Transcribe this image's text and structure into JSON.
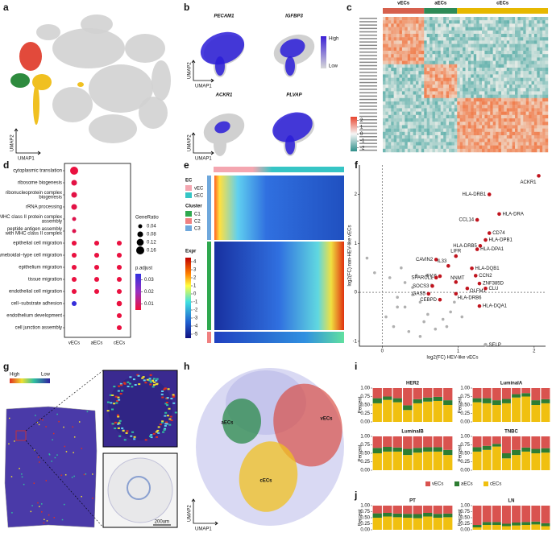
{
  "panel_labels": [
    "a",
    "b",
    "c",
    "d",
    "e",
    "f",
    "g",
    "h",
    "i",
    "j"
  ],
  "a": {
    "xlabel": "UMAP1",
    "ylabel": "UMAP2"
  },
  "b": {
    "genes": [
      "PECAM1",
      "IGFBP3",
      "ACKR1",
      "PLVAP"
    ],
    "scale": [
      "High",
      "Low"
    ],
    "xlabel": "UMAP1",
    "ylabel": "UMAP2"
  },
  "c": {
    "groups": [
      "vECs",
      "aECs",
      "cECs"
    ],
    "group_colors": [
      "#d6604d",
      "#2e8b57",
      "#e6b800"
    ],
    "colorbar_ticks": [
      2,
      1,
      0,
      -1,
      -2
    ],
    "colorbar_lim": [
      -2.5,
      2.5
    ]
  },
  "d": {
    "terms": [
      [
        "cytoplasmic translation"
      ],
      [
        "ribosome biogenesis"
      ],
      [
        "ribonucleoprotein complex",
        "biogenesis"
      ],
      [
        "rRNA processing"
      ],
      [
        "MHC class II protein complex",
        "assembly"
      ],
      [
        "peptide antigen assembly",
        "with MHC class II complex"
      ],
      [
        "epithelial cell migration"
      ],
      [
        "ameboidal−type cell migration"
      ],
      [
        "epithelium migration"
      ],
      [
        "tissue migration"
      ],
      [
        "endothelial cell migration"
      ],
      [
        "cell−substrate adhesion"
      ],
      [
        "endothelium development"
      ],
      [
        "cell junction assembly"
      ]
    ],
    "columns": [
      "vECs",
      "aECs",
      "cECs"
    ],
    "size_title": "GeneRatio",
    "size_ticks": [
      0.04,
      0.08,
      0.12,
      0.16
    ],
    "color_title": "p.adjust",
    "color_ticks": [
      0.03,
      0.02,
      0.01
    ],
    "color_lim": [
      0.005,
      0.035
    ],
    "ratio": [
      [
        0.16,
        null,
        null
      ],
      [
        0.08,
        null,
        null
      ],
      [
        0.08,
        null,
        null
      ],
      [
        0.08,
        null,
        null
      ],
      [
        0.04,
        null,
        null
      ],
      [
        0.04,
        null,
        null
      ],
      [
        0.06,
        0.06,
        0.06
      ],
      [
        0.06,
        0.06,
        0.06
      ],
      [
        0.06,
        0.06,
        0.06
      ],
      [
        0.06,
        0.06,
        0.06
      ],
      [
        0.06,
        0.06,
        0.06
      ],
      [
        0.06,
        null,
        0.07
      ],
      [
        null,
        null,
        0.06
      ],
      [
        null,
        null,
        0.06
      ]
    ],
    "padj": [
      [
        0.006,
        null,
        null
      ],
      [
        0.007,
        null,
        null
      ],
      [
        0.007,
        null,
        null
      ],
      [
        0.007,
        null,
        null
      ],
      [
        0.008,
        null,
        null
      ],
      [
        0.008,
        null,
        null
      ],
      [
        0.006,
        0.006,
        0.006
      ],
      [
        0.006,
        0.006,
        0.006
      ],
      [
        0.006,
        0.006,
        0.006
      ],
      [
        0.006,
        0.006,
        0.006
      ],
      [
        0.006,
        0.006,
        0.006
      ],
      [
        0.034,
        null,
        0.006
      ],
      [
        null,
        null,
        0.006
      ],
      [
        null,
        null,
        0.006
      ]
    ]
  },
  "e": {
    "ec_title": "EC",
    "ec": [
      "vEC",
      "cEC"
    ],
    "ec_colors": [
      "#f4a6b0",
      "#36c5c5"
    ],
    "cluster_title": "Cluster",
    "clusters": [
      "C1",
      "C2",
      "C3"
    ],
    "cluster_colors": [
      "#2fa84f",
      "#f08080",
      "#6fa8dc"
    ],
    "expr_title": "Expr",
    "expr_ticks": [
      4,
      3,
      2,
      1,
      0,
      -1,
      -2,
      -3,
      -4,
      -5
    ],
    "expr_lim": [
      -5.5,
      4.5
    ]
  },
  "f": {
    "xlabel": "log2(FC) HEV-like vECs",
    "ylabel": "log2(FC) non-HEV-like vECs",
    "xlim": [
      -0.3,
      2.15
    ],
    "ylim": [
      -1.1,
      2.6
    ],
    "xticks": [
      0,
      1,
      2
    ],
    "yticks": [
      -1,
      0,
      1,
      2
    ],
    "highlight": "#c0141e",
    "other": "#b0b0b0",
    "labeled": [
      {
        "name": "ACKR1",
        "x": 2.06,
        "y": 2.38,
        "color": "#c0141e"
      },
      {
        "name": "HLA-DRB1",
        "x": 1.41,
        "y": 2.0,
        "color": "#c0141e"
      },
      {
        "name": "HLA-DRA",
        "x": 1.54,
        "y": 1.6,
        "color": "#c0141e"
      },
      {
        "name": "CCL14",
        "x": 1.25,
        "y": 1.48,
        "color": "#c0141e"
      },
      {
        "name": "CD74",
        "x": 1.41,
        "y": 1.21,
        "color": "#c0141e"
      },
      {
        "name": "HLA-DPB1",
        "x": 1.36,
        "y": 1.07,
        "color": "#c0141e"
      },
      {
        "name": "HLA-DRB5",
        "x": 1.29,
        "y": 0.95,
        "color": "#c0141e"
      },
      {
        "name": "HLA-DPA1",
        "x": 1.25,
        "y": 0.88,
        "color": "#c0141e"
      },
      {
        "name": "LIFR",
        "x": 0.97,
        "y": 0.74,
        "color": "#c0141e"
      },
      {
        "name": "CAVIN2",
        "x": 0.71,
        "y": 0.67,
        "color": "#c0141e"
      },
      {
        "name": "IL33",
        "x": 0.87,
        "y": 0.54,
        "color": "#c0141e"
      },
      {
        "name": "HLA-DQB1",
        "x": 1.18,
        "y": 0.49,
        "color": "#c0141e"
      },
      {
        "name": "CCN2",
        "x": 1.23,
        "y": 0.34,
        "color": "#c0141e"
      },
      {
        "name": "IFI16",
        "x": 0.76,
        "y": 0.33,
        "color": "#c0141e"
      },
      {
        "name": "SPARCL1",
        "x": 0.71,
        "y": 0.3,
        "color": "#c0141e"
      },
      {
        "name": "NNMT",
        "x": 0.97,
        "y": 0.21,
        "color": "#c0141e"
      },
      {
        "name": "ZNF385D",
        "x": 1.28,
        "y": 0.18,
        "color": "#c0141e"
      },
      {
        "name": "SOCS3",
        "x": 0.66,
        "y": 0.13,
        "color": "#c0141e"
      },
      {
        "name": "OLFM1",
        "x": 1.12,
        "y": 0.08,
        "color": "#c0141e"
      },
      {
        "name": "CLU",
        "x": 1.36,
        "y": 0.08,
        "color": "#c0141e"
      },
      {
        "name": "GAS5",
        "x": 0.61,
        "y": -0.03,
        "color": "#c0141e"
      },
      {
        "name": "HLA-DRB6",
        "x": 0.97,
        "y": -0.03,
        "color": "#c0141e"
      },
      {
        "name": "CEBPD",
        "x": 0.76,
        "y": -0.15,
        "color": "#c0141e"
      },
      {
        "name": "HLA-DQA1",
        "x": 1.28,
        "y": -0.28,
        "color": "#c0141e"
      },
      {
        "name": "SELP",
        "x": 1.36,
        "y": -1.07,
        "color": "#b0b0b0"
      }
    ],
    "others": {
      "x": [
        -0.2,
        -0.1,
        0.1,
        0.2,
        0.3,
        0.05,
        0.4,
        0.5,
        0.6,
        0.25,
        0.15,
        0.35,
        0.45,
        0.55,
        0.8,
        0.9,
        0.7,
        0.3,
        0.5,
        0.65,
        0.2,
        0.4,
        0.85,
        1.05,
        0.95
      ],
      "y": [
        0.7,
        0.4,
        0.3,
        -0.1,
        -0.3,
        -0.5,
        0.1,
        -0.2,
        -0.45,
        0.5,
        -0.7,
        -0.8,
        0.35,
        -0.6,
        -0.55,
        -0.4,
        -0.75,
        0.2,
        -0.9,
        0.15,
        -0.3,
        -0.05,
        -0.7,
        -0.5,
        -0.2
      ]
    }
  },
  "g": {
    "scale": [
      "High",
      "Low"
    ],
    "scalebar": "200um"
  },
  "h": {
    "clusters": [
      "vECs",
      "aECs",
      "cECs"
    ],
    "xlabel": "UMAP1",
    "ylabel": "UMAP2"
  },
  "bars": {
    "ylabel": "Percent",
    "ylim": [
      0,
      1
    ],
    "yticks": [
      {
        "value": 0,
        "label": "0.00"
      },
      {
        "value": 0.25,
        "label": "0.25"
      },
      {
        "value": 0.5,
        "label": "0.50"
      },
      {
        "value": 0.75,
        "label": "0.75"
      },
      {
        "value": 1,
        "label": "1.00"
      }
    ],
    "legend": [
      {
        "name": "vECs",
        "color": "#d9534f"
      },
      {
        "name": "aECs",
        "color": "#2e7d32"
      },
      {
        "name": "cECs",
        "color": "#f0c010"
      }
    ]
  },
  "i": {
    "panels": [
      {
        "title": "HER2",
        "series": [
          [
            0.3,
            0.25,
            0.3,
            0.51,
            0.33,
            0.28,
            0.26,
            0.36
          ],
          [
            0.15,
            0.1,
            0.12,
            0.14,
            0.12,
            0.12,
            0.12,
            0.14
          ],
          [
            0.55,
            0.65,
            0.58,
            0.35,
            0.55,
            0.6,
            0.62,
            0.5
          ]
        ]
      },
      {
        "title": "LuminalA",
        "series": [
          [
            0.3,
            0.3,
            0.36,
            0.32,
            0.18,
            0.15,
            0.36,
            0.33
          ],
          [
            0.12,
            0.15,
            0.14,
            0.13,
            0.1,
            0.1,
            0.14,
            0.12
          ],
          [
            0.58,
            0.55,
            0.5,
            0.55,
            0.72,
            0.75,
            0.5,
            0.55
          ]
        ]
      },
      {
        "title": "LuminalB",
        "series": [
          [
            0.34,
            0.31,
            0.33,
            0.37,
            0.34,
            0.32,
            0.32,
            0.4
          ],
          [
            0.16,
            0.14,
            0.12,
            0.18,
            0.14,
            0.13,
            0.13,
            0.15
          ],
          [
            0.5,
            0.55,
            0.55,
            0.45,
            0.52,
            0.55,
            0.55,
            0.45
          ]
        ]
      },
      {
        "title": "TNBC",
        "series": [
          [
            0.32,
            0.28,
            0.22,
            0.5,
            0.4,
            0.33,
            0.37,
            0.35
          ],
          [
            0.13,
            0.12,
            0.08,
            0.15,
            0.15,
            0.12,
            0.13,
            0.13
          ],
          [
            0.55,
            0.6,
            0.7,
            0.35,
            0.45,
            0.55,
            0.5,
            0.52
          ]
        ]
      }
    ]
  },
  "j": {
    "panels": [
      {
        "title": "PT",
        "series": [
          [
            0.32,
            0.3,
            0.33,
            0.34,
            0.35,
            0.3,
            0.34,
            0.33
          ],
          [
            0.18,
            0.15,
            0.15,
            0.16,
            0.17,
            0.15,
            0.16,
            0.15
          ],
          [
            0.5,
            0.55,
            0.52,
            0.5,
            0.48,
            0.55,
            0.5,
            0.52
          ]
        ]
      },
      {
        "title": "LN",
        "series": [
          [
            0.8,
            0.68,
            0.68,
            0.75,
            0.7,
            0.68,
            0.66,
            0.73
          ],
          [
            0.1,
            0.12,
            0.12,
            0.1,
            0.12,
            0.12,
            0.12,
            0.12
          ],
          [
            0.1,
            0.2,
            0.2,
            0.15,
            0.18,
            0.2,
            0.22,
            0.15
          ]
        ]
      }
    ]
  }
}
